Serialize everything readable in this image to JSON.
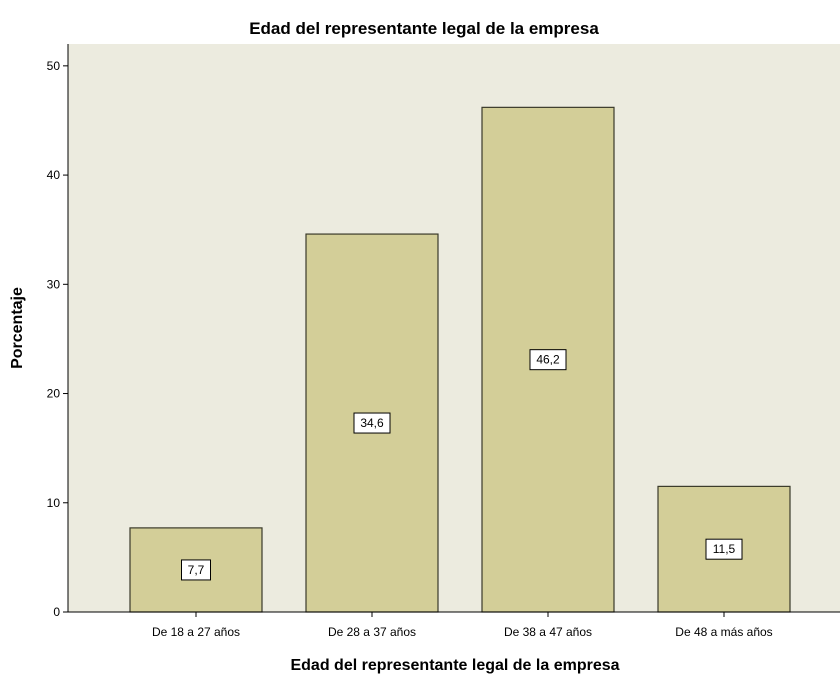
{
  "chart_data": {
    "type": "bar",
    "title": "Edad del representante legal de la empresa",
    "xlabel": "Edad del representante legal de la empresa",
    "ylabel": "Porcentaje",
    "categories": [
      "De 18 a 27 años",
      "De 28 a 37 años",
      "De 38 a 47 años",
      "De 48 a más años"
    ],
    "values": [
      7.7,
      34.6,
      46.2,
      11.5
    ],
    "value_labels": [
      "7,7",
      "34,6",
      "46,2",
      "11,5"
    ],
    "ylim": [
      0,
      52
    ],
    "yticks": [
      0,
      10,
      20,
      30,
      40,
      50
    ],
    "ytick_labels": [
      "0",
      "10",
      "20",
      "30",
      "40",
      "50"
    ],
    "grid": false,
    "legend": "none",
    "colors": {
      "plot_background": "#ecebdf",
      "bar_fill": "#d3ce98",
      "bar_stroke": "#3a3a2a",
      "axis": "#000000"
    }
  }
}
